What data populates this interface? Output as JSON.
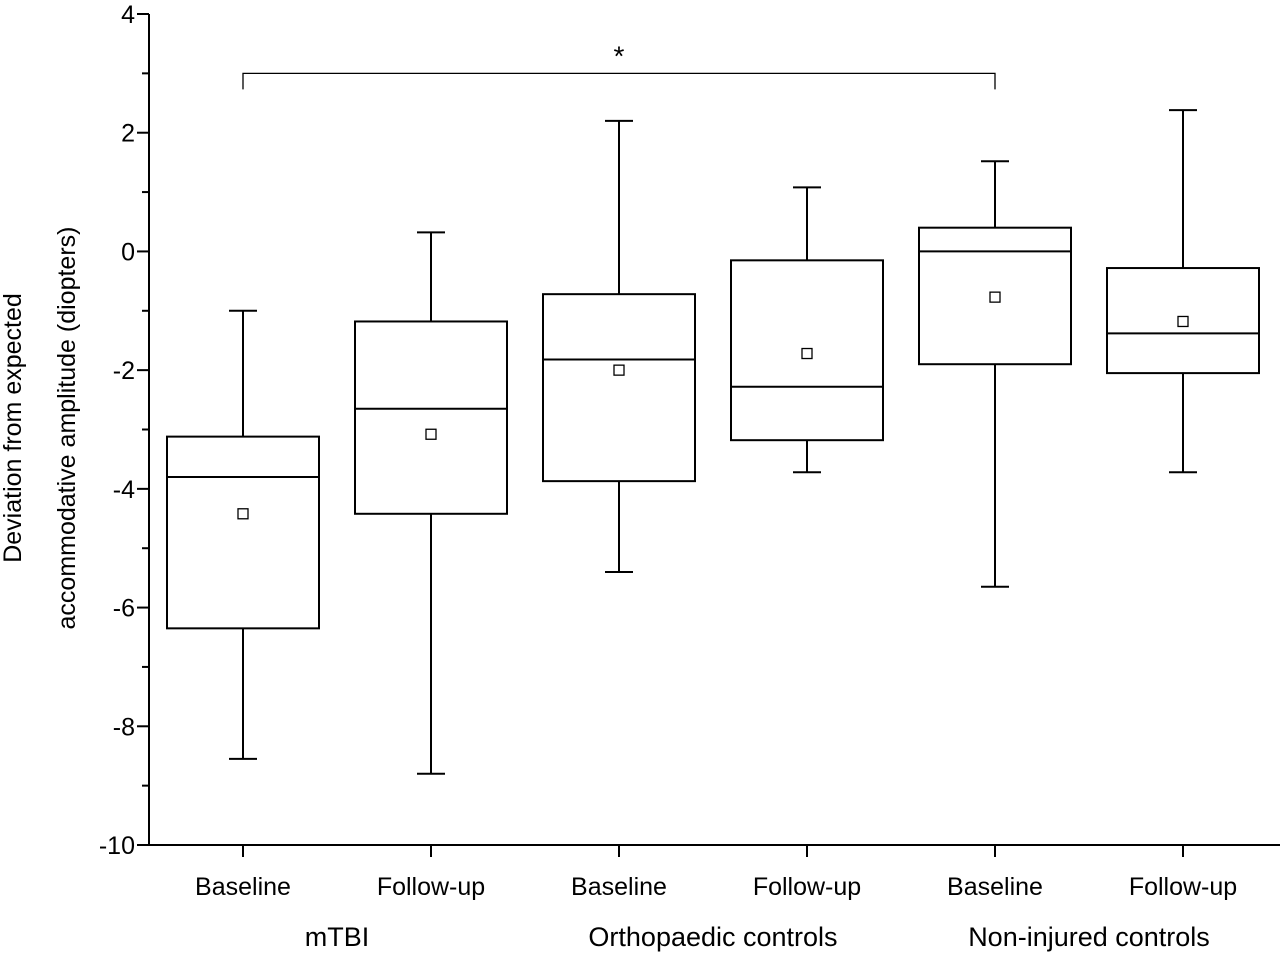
{
  "chart_data": {
    "type": "box",
    "ylabel_lines": [
      "Deviation from expected",
      "accommodative amplitude (diopters)"
    ],
    "ylim": [
      -10,
      4
    ],
    "yticks": [
      4,
      2,
      0,
      -2,
      -4,
      -6,
      -8,
      -10
    ],
    "ytick_labels": [
      "4",
      "2",
      "0",
      "-2",
      "-4",
      "-6",
      "-8",
      "-10"
    ],
    "categories": [
      "Baseline",
      "Follow-up",
      "Baseline",
      "Follow-up",
      "Baseline",
      "Follow-up"
    ],
    "groups": [
      {
        "label": "mTBI",
        "category_indices": [
          0,
          1
        ]
      },
      {
        "label": "Orthopaedic controls",
        "category_indices": [
          2,
          3
        ]
      },
      {
        "label": "Non-injured controls",
        "category_indices": [
          4,
          5
        ]
      }
    ],
    "boxes": [
      {
        "whisker_low": -8.55,
        "q1": -6.35,
        "median": -3.8,
        "q3": -3.12,
        "whisker_high": -1.0,
        "mean": -4.42
      },
      {
        "whisker_low": -8.8,
        "q1": -4.42,
        "median": -2.65,
        "q3": -1.18,
        "whisker_high": 0.32,
        "mean": -3.08
      },
      {
        "whisker_low": -5.4,
        "q1": -3.87,
        "median": -1.82,
        "q3": -0.72,
        "whisker_high": 2.2,
        "mean": -2.0
      },
      {
        "whisker_low": -3.72,
        "q1": -3.18,
        "median": -2.28,
        "q3": -0.15,
        "whisker_high": 1.08,
        "mean": -1.72
      },
      {
        "whisker_low": -5.65,
        "q1": -1.9,
        "median": 0.0,
        "q3": 0.4,
        "whisker_high": 1.52,
        "mean": -0.77
      },
      {
        "whisker_low": -3.72,
        "q1": -2.05,
        "median": -1.38,
        "q3": -0.28,
        "whisker_high": 2.38,
        "mean": -1.18
      }
    ],
    "significance": [
      {
        "from_index": 0,
        "to_index": 4,
        "label": "*",
        "y": 3.0
      }
    ]
  }
}
